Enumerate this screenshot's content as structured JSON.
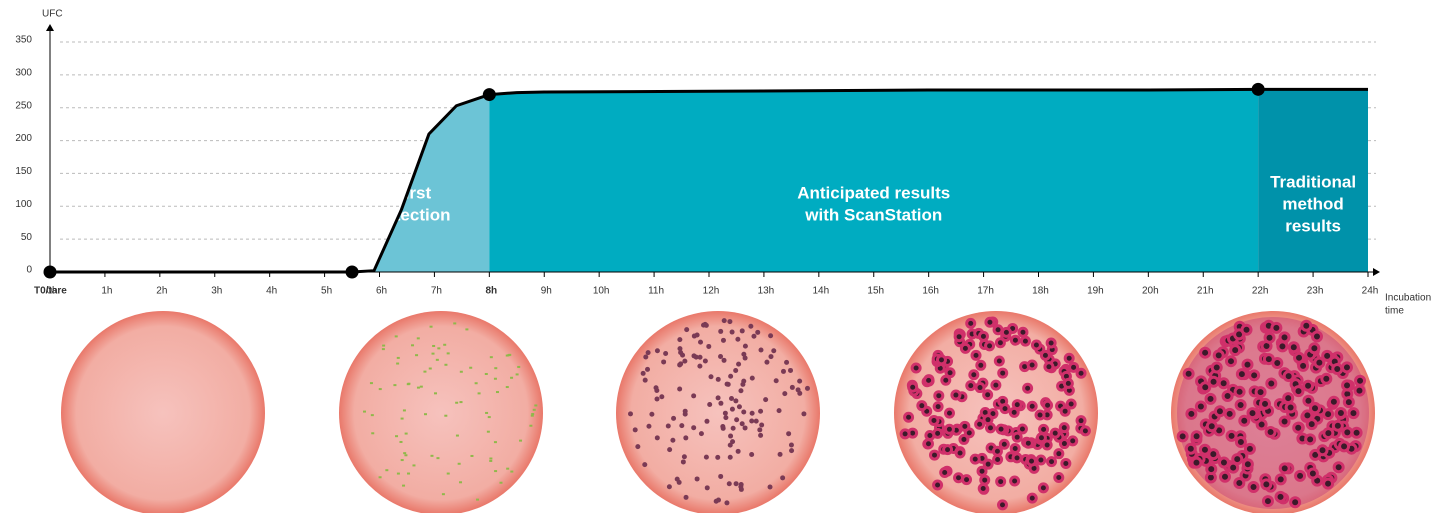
{
  "chart_data": {
    "type": "line",
    "y_label": "UFC",
    "x_label": [
      "Incubation",
      "time"
    ],
    "origin_label": "T0/tare",
    "x": [
      0,
      5.5,
      5.9,
      6.4,
      6.9,
      7.4,
      8,
      8.5,
      9,
      12,
      16,
      20,
      22,
      24
    ],
    "series": [
      {
        "name": "UFC",
        "color": "#000000",
        "values": [
          0,
          0,
          2,
          95,
          210,
          253,
          270,
          273,
          274,
          275,
          277,
          277,
          278,
          278
        ]
      }
    ],
    "points": {
      "x": [
        0,
        5.5,
        8,
        22
      ],
      "y": [
        0,
        0,
        270,
        278
      ]
    },
    "regions": [
      {
        "start": 5.5,
        "end": 8,
        "color": "#6cc4d6",
        "label": [
          "First",
          "detection"
        ]
      },
      {
        "start": 8,
        "end": 22,
        "color": "#00acc1",
        "label": [
          "Anticipated results",
          "with ScanStation"
        ]
      },
      {
        "start": 22,
        "end": 24,
        "color": "#0092aa",
        "label": [
          "Traditional",
          "method",
          "results"
        ]
      }
    ],
    "xlim": [
      0,
      24
    ],
    "xticks": [
      {
        "value": 0,
        "label": "0h"
      },
      {
        "value": 1,
        "label": "1h"
      },
      {
        "value": 2,
        "label": "2h"
      },
      {
        "value": 3,
        "label": "3h"
      },
      {
        "value": 4,
        "label": "4h"
      },
      {
        "value": 5,
        "label": "5h"
      },
      {
        "value": 6,
        "label": "6h"
      },
      {
        "value": 7,
        "label": "7h"
      },
      {
        "value": 8,
        "label": "8h"
      },
      {
        "value": 9,
        "label": "9h"
      },
      {
        "value": 10,
        "label": "10h"
      },
      {
        "value": 11,
        "label": "11h"
      },
      {
        "value": 12,
        "label": "12h"
      },
      {
        "value": 13,
        "label": "13h"
      },
      {
        "value": 14,
        "label": "14h"
      },
      {
        "value": 15,
        "label": "15h"
      },
      {
        "value": 16,
        "label": "16h"
      },
      {
        "value": 17,
        "label": "17h"
      },
      {
        "value": 18,
        "label": "18h"
      },
      {
        "value": 19,
        "label": "19h"
      },
      {
        "value": 20,
        "label": "20h"
      },
      {
        "value": 21,
        "label": "21h"
      },
      {
        "value": 22,
        "label": "22h"
      },
      {
        "value": 23,
        "label": "23h"
      },
      {
        "value": 24,
        "label": "24h"
      }
    ],
    "bold_xtick": 8,
    "ylim": [
      0,
      350
    ],
    "yticks": [
      0,
      50,
      100,
      150,
      200,
      250,
      300,
      350
    ],
    "grid": true
  }
}
